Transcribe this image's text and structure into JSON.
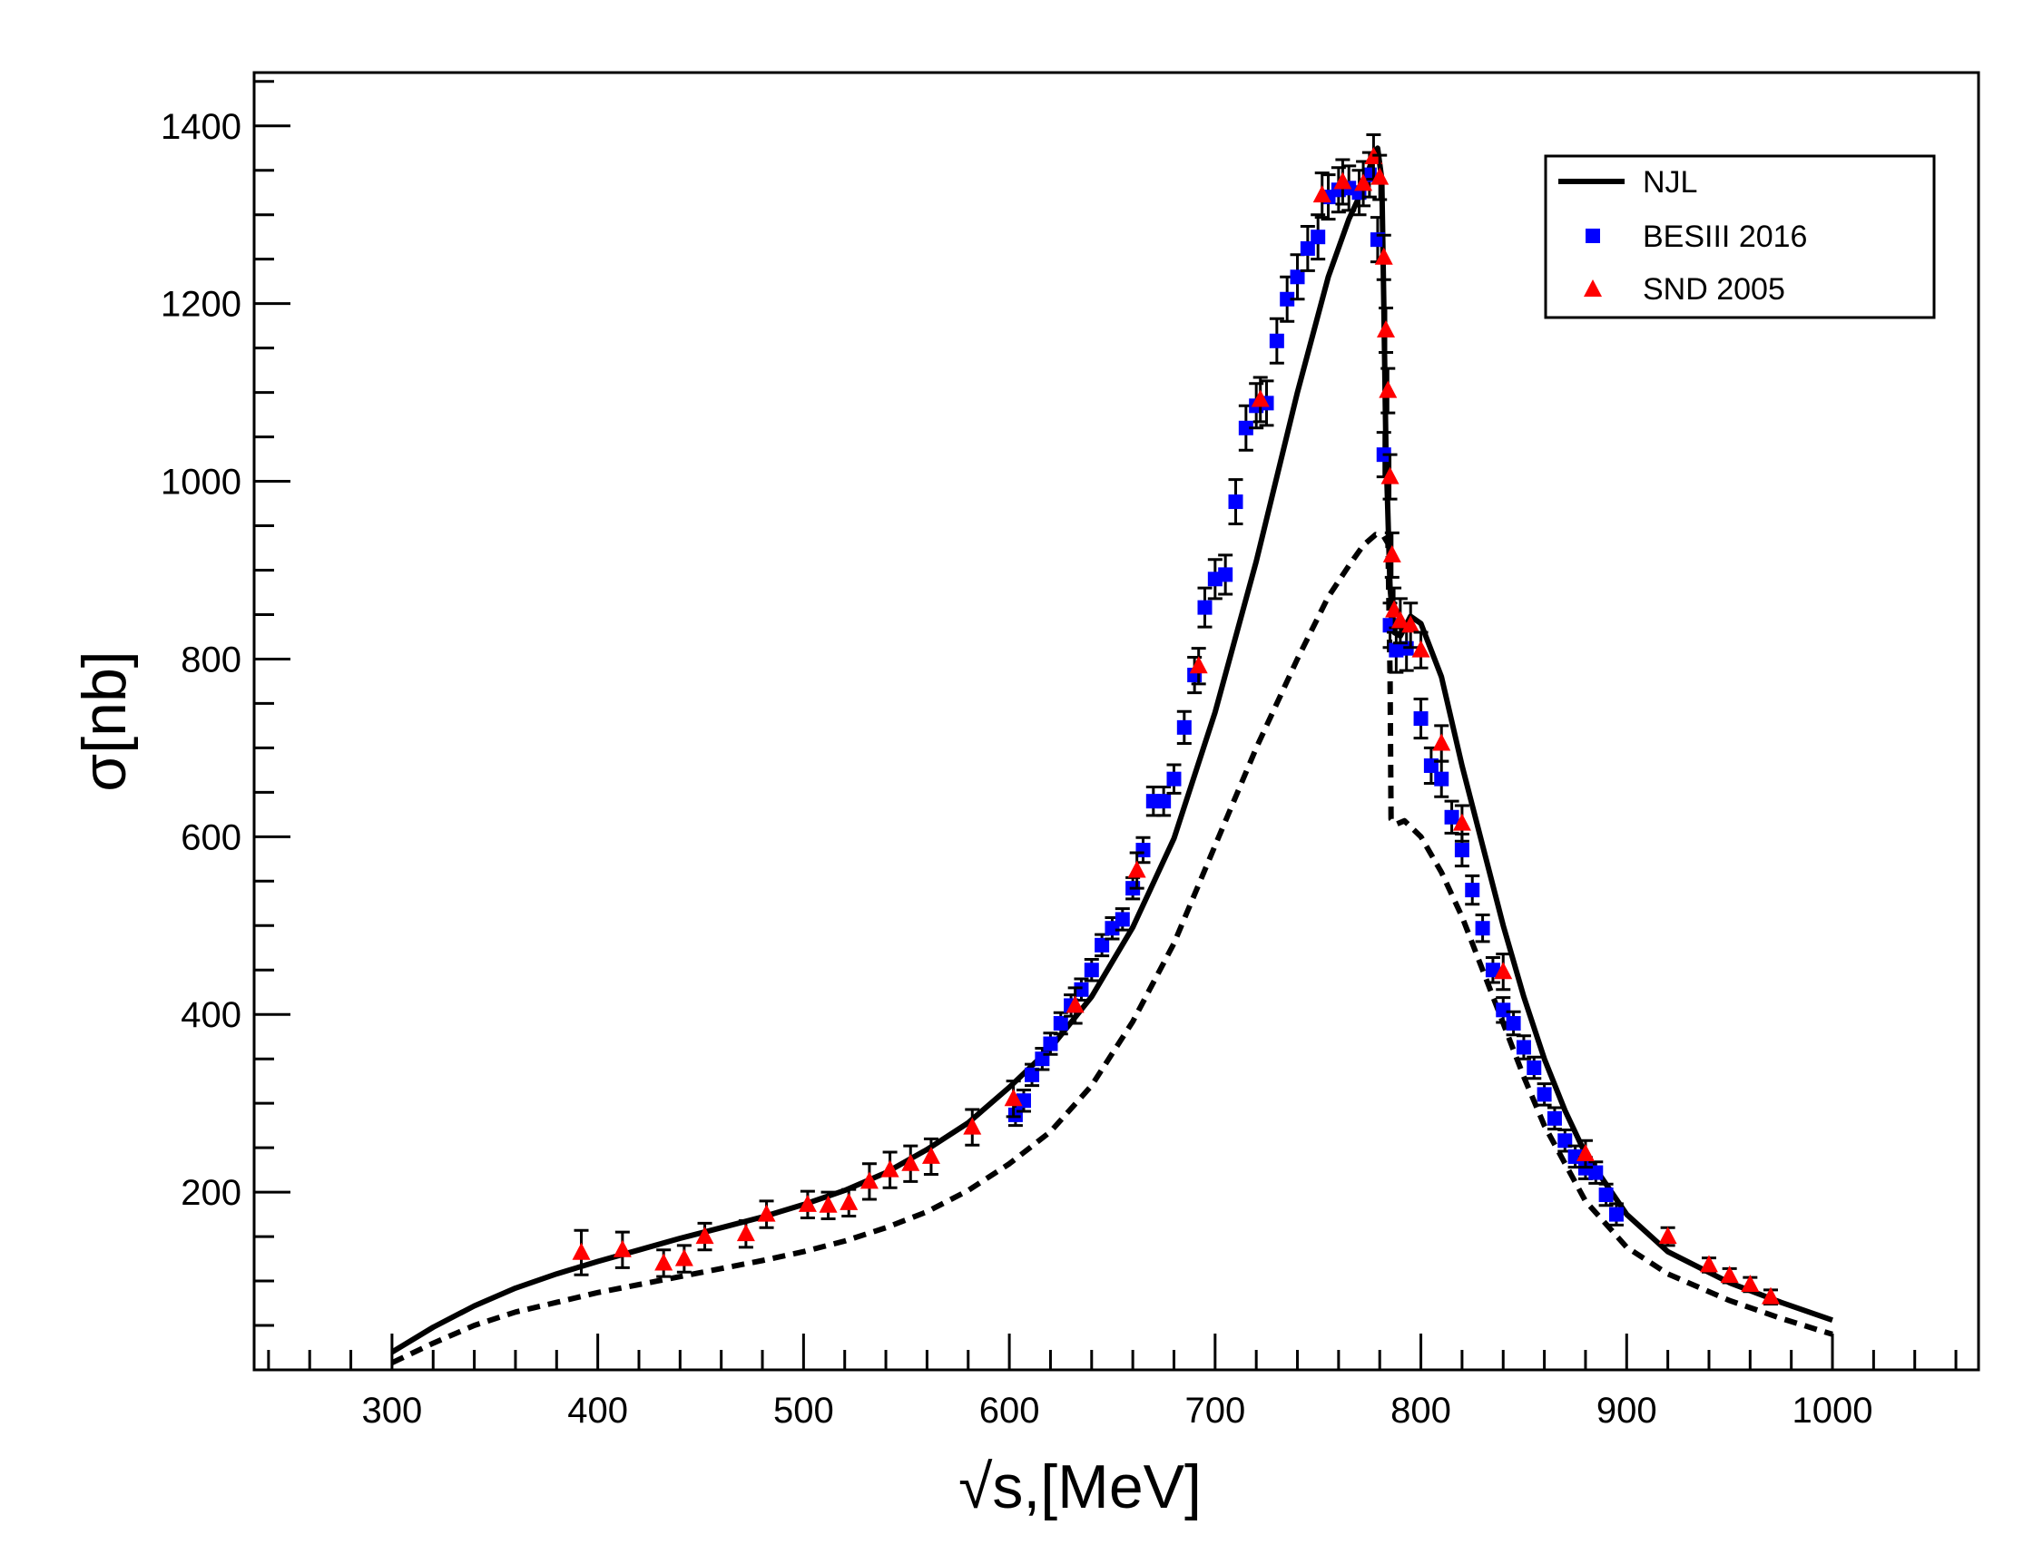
{
  "chart_data": {
    "type": "scatter",
    "xlabel": "√s,[MeV]",
    "ylabel": "σ[nb]",
    "xlim": [
      233,
      1071
    ],
    "ylim": [
      0,
      1460
    ],
    "x_ticks": [
      300,
      400,
      500,
      600,
      700,
      800,
      900,
      1000
    ],
    "y_ticks": [
      200,
      400,
      600,
      800,
      1000,
      1200,
      1400
    ],
    "legend_position": "top-right",
    "legend": [
      {
        "label": "NJL",
        "marker": "line",
        "color": "#000000"
      },
      {
        "label": "BESIII 2016",
        "marker": "square",
        "color": "#0000ff"
      },
      {
        "label": "SND 2005",
        "marker": "triangle",
        "color": "#ff0000"
      }
    ],
    "series": [
      {
        "name": "NJL",
        "style": "solid",
        "color": "#000000",
        "points": [
          [
            300,
            20
          ],
          [
            320,
            48
          ],
          [
            340,
            72
          ],
          [
            360,
            92
          ],
          [
            380,
            108
          ],
          [
            400,
            122
          ],
          [
            420,
            135
          ],
          [
            440,
            148
          ],
          [
            460,
            160
          ],
          [
            480,
            172
          ],
          [
            500,
            186
          ],
          [
            520,
            202
          ],
          [
            540,
            222
          ],
          [
            560,
            248
          ],
          [
            580,
            278
          ],
          [
            600,
            318
          ],
          [
            620,
            362
          ],
          [
            640,
            420
          ],
          [
            660,
            498
          ],
          [
            680,
            598
          ],
          [
            700,
            740
          ],
          [
            720,
            910
          ],
          [
            740,
            1100
          ],
          [
            755,
            1230
          ],
          [
            765,
            1295
          ],
          [
            772,
            1330
          ],
          [
            776,
            1360
          ],
          [
            779,
            1375
          ],
          [
            781,
            1340
          ],
          [
            782,
            1200
          ],
          [
            783,
            1040
          ],
          [
            784,
            960
          ],
          [
            785,
            880
          ],
          [
            787,
            830
          ],
          [
            790,
            826
          ],
          [
            795,
            848
          ],
          [
            800,
            840
          ],
          [
            810,
            780
          ],
          [
            820,
            680
          ],
          [
            830,
            590
          ],
          [
            840,
            500
          ],
          [
            850,
            420
          ],
          [
            860,
            350
          ],
          [
            870,
            292
          ],
          [
            880,
            243
          ],
          [
            900,
            175
          ],
          [
            920,
            133
          ],
          [
            950,
            98
          ],
          [
            975,
            76
          ],
          [
            1000,
            56
          ]
        ]
      },
      {
        "name": "dashed",
        "style": "dashed",
        "color": "#000000",
        "points": [
          [
            300,
            8
          ],
          [
            320,
            30
          ],
          [
            340,
            50
          ],
          [
            360,
            65
          ],
          [
            380,
            76
          ],
          [
            400,
            87
          ],
          [
            420,
            96
          ],
          [
            440,
            105
          ],
          [
            460,
            114
          ],
          [
            480,
            123
          ],
          [
            500,
            133
          ],
          [
            520,
            145
          ],
          [
            540,
            160
          ],
          [
            560,
            178
          ],
          [
            580,
            202
          ],
          [
            600,
            232
          ],
          [
            620,
            268
          ],
          [
            640,
            320
          ],
          [
            660,
            392
          ],
          [
            680,
            480
          ],
          [
            700,
            590
          ],
          [
            720,
            700
          ],
          [
            740,
            800
          ],
          [
            755,
            870
          ],
          [
            765,
            905
          ],
          [
            772,
            928
          ],
          [
            778,
            940
          ],
          [
            782,
            938
          ],
          [
            784,
            930
          ],
          [
            785,
            780
          ],
          [
            785.5,
            620
          ],
          [
            788,
            614
          ],
          [
            792,
            618
          ],
          [
            800,
            600
          ],
          [
            810,
            560
          ],
          [
            820,
            510
          ],
          [
            830,
            450
          ],
          [
            840,
            390
          ],
          [
            850,
            330
          ],
          [
            860,
            275
          ],
          [
            880,
            190
          ],
          [
            900,
            138
          ],
          [
            920,
            108
          ],
          [
            950,
            78
          ],
          [
            975,
            58
          ],
          [
            1000,
            40
          ]
        ]
      },
      {
        "name": "BESIII 2016",
        "color": "#0000ff",
        "points": [
          [
            603,
            287,
            12
          ],
          [
            607,
            303,
            12
          ],
          [
            611,
            332,
            12
          ],
          [
            616,
            350,
            12
          ],
          [
            620,
            367,
            12
          ],
          [
            625,
            390,
            12
          ],
          [
            630,
            410,
            12
          ],
          [
            635,
            428,
            12
          ],
          [
            640,
            450,
            12
          ],
          [
            645,
            478,
            12
          ],
          [
            650,
            497,
            12
          ],
          [
            655,
            507,
            12
          ],
          [
            660,
            542,
            12
          ],
          [
            665,
            585,
            14
          ],
          [
            670,
            640,
            16
          ],
          [
            675,
            640,
            16
          ],
          [
            680,
            665,
            16
          ],
          [
            685,
            723,
            18
          ],
          [
            690,
            782,
            20
          ],
          [
            695,
            858,
            22
          ],
          [
            700,
            890,
            22
          ],
          [
            705,
            895,
            22
          ],
          [
            710,
            977,
            25
          ],
          [
            715,
            1060,
            25
          ],
          [
            720,
            1085,
            25
          ],
          [
            725,
            1088,
            25
          ],
          [
            730,
            1158,
            25
          ],
          [
            735,
            1205,
            25
          ],
          [
            740,
            1230,
            25
          ],
          [
            745,
            1262,
            25
          ],
          [
            750,
            1275,
            25
          ],
          [
            755,
            1320,
            25
          ],
          [
            760,
            1328,
            25
          ],
          [
            765,
            1330,
            25
          ],
          [
            770,
            1325,
            25
          ],
          [
            775,
            1345,
            25
          ],
          [
            779,
            1272,
            25
          ],
          [
            782,
            1030,
            25
          ],
          [
            785,
            838,
            25
          ],
          [
            788,
            810,
            25
          ],
          [
            793,
            812,
            25
          ],
          [
            800,
            733,
            22
          ],
          [
            805,
            680,
            20
          ],
          [
            810,
            665,
            20
          ],
          [
            815,
            622,
            18
          ],
          [
            820,
            585,
            18
          ],
          [
            825,
            540,
            16
          ],
          [
            830,
            497,
            15
          ],
          [
            835,
            450,
            14
          ],
          [
            840,
            405,
            14
          ],
          [
            845,
            390,
            13
          ],
          [
            850,
            363,
            13
          ],
          [
            855,
            340,
            12
          ],
          [
            860,
            310,
            12
          ],
          [
            865,
            283,
            12
          ],
          [
            870,
            258,
            12
          ],
          [
            875,
            240,
            12
          ],
          [
            880,
            227,
            12
          ],
          [
            885,
            222,
            12
          ],
          [
            890,
            197,
            12
          ],
          [
            895,
            175,
            12
          ]
        ]
      },
      {
        "name": "SND 2005",
        "color": "#ff0000",
        "points": [
          [
            392,
            132,
            25
          ],
          [
            412,
            135,
            20
          ],
          [
            432,
            120,
            15
          ],
          [
            442,
            125,
            15
          ],
          [
            452,
            150,
            15
          ],
          [
            472,
            153,
            15
          ],
          [
            482,
            175,
            15
          ],
          [
            502,
            186,
            15
          ],
          [
            512,
            185,
            15
          ],
          [
            522,
            188,
            15
          ],
          [
            532,
            212,
            20
          ],
          [
            542,
            225,
            20
          ],
          [
            552,
            232,
            20
          ],
          [
            562,
            240,
            20
          ],
          [
            582,
            273,
            20
          ],
          [
            602,
            305,
            20
          ],
          [
            632,
            410,
            20
          ],
          [
            662,
            562,
            20
          ],
          [
            692,
            792,
            20
          ],
          [
            722,
            1092,
            25
          ],
          [
            752,
            1322,
            25
          ],
          [
            762,
            1337,
            25
          ],
          [
            772,
            1335,
            25
          ],
          [
            777,
            1365,
            25
          ],
          [
            780,
            1342,
            25
          ],
          [
            782,
            1252,
            25
          ],
          [
            783,
            1170,
            25
          ],
          [
            784,
            1102,
            25
          ],
          [
            785,
            1005,
            25
          ],
          [
            786,
            917,
            25
          ],
          [
            787,
            855,
            25
          ],
          [
            790,
            843,
            25
          ],
          [
            795,
            838,
            25
          ],
          [
            800,
            810,
            20
          ],
          [
            810,
            705,
            20
          ],
          [
            820,
            615,
            20
          ],
          [
            840,
            448,
            20
          ],
          [
            880,
            243,
            15
          ],
          [
            920,
            150,
            10
          ],
          [
            940,
            118,
            8
          ],
          [
            950,
            106,
            8
          ],
          [
            960,
            96,
            8
          ],
          [
            970,
            82,
            8
          ]
        ]
      }
    ]
  }
}
